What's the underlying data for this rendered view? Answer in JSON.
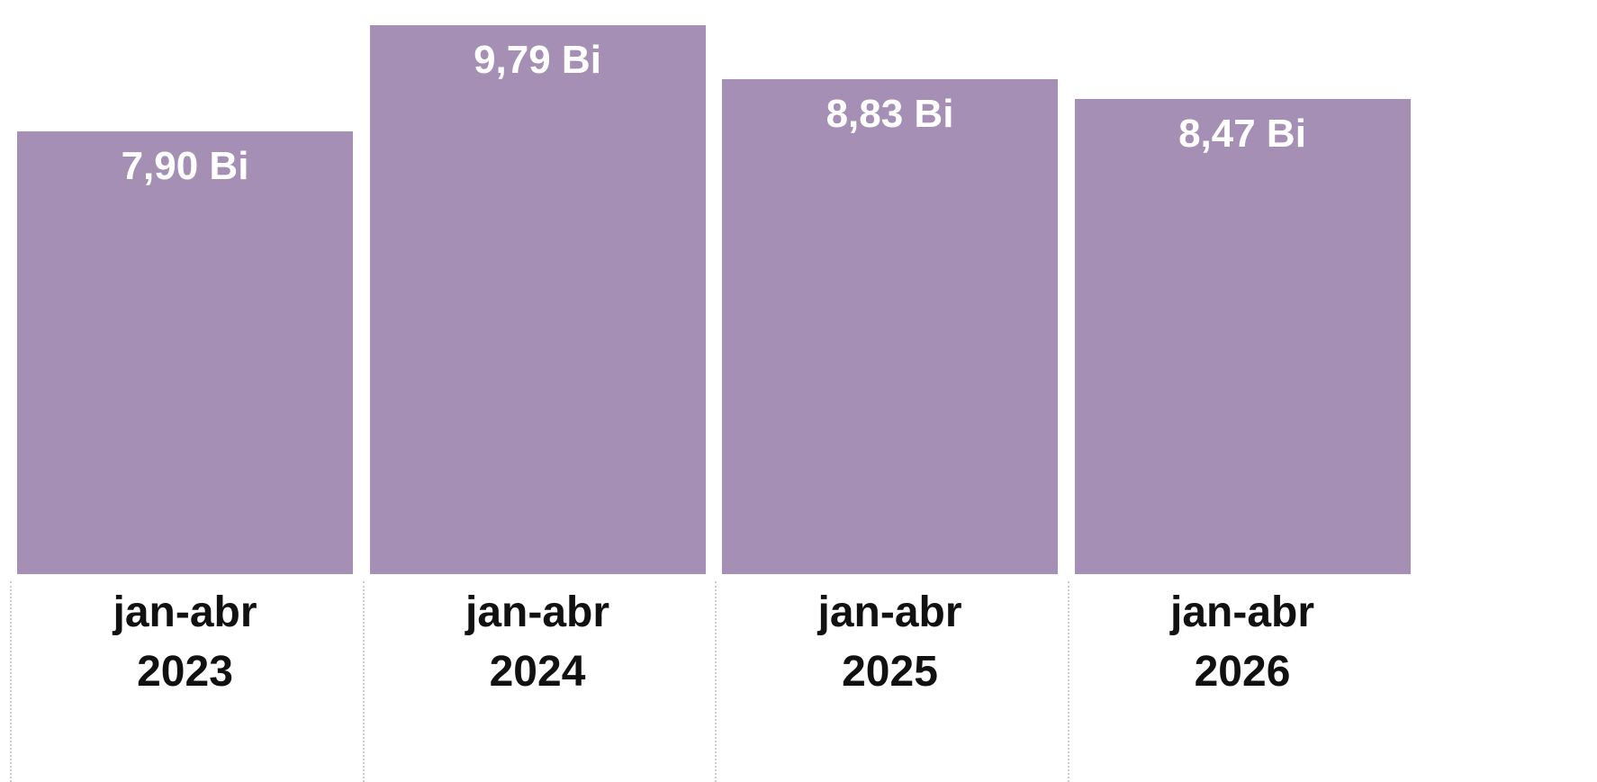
{
  "chart_data": {
    "type": "bar",
    "categories": [
      "jan-abr 2023",
      "jan-abr 2024",
      "jan-abr 2025",
      "jan-abr 2026"
    ],
    "values": [
      7.9,
      9.79,
      8.83,
      8.47
    ],
    "value_labels": [
      "7,90 Bi",
      "9,79 Bi",
      "8,83 Bi",
      "8,47 Bi"
    ],
    "color": "#a58fb4"
  }
}
